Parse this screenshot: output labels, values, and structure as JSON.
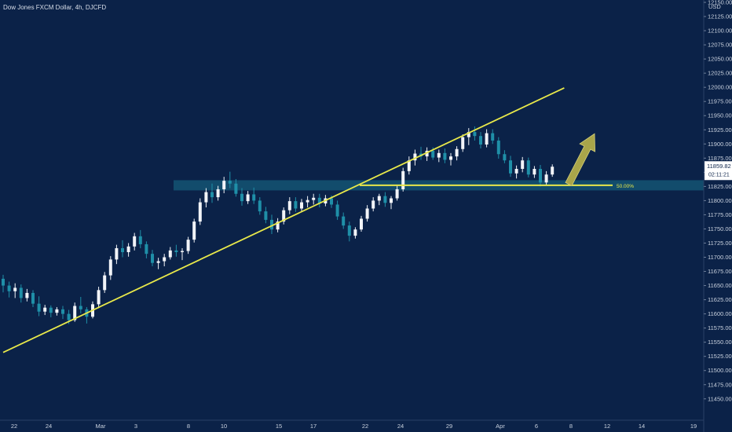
{
  "header": {
    "title": "Dow Jones FXCM Dollar, 4h, DJCFD"
  },
  "colors": {
    "background": "#0b2248",
    "bullish": "#f2f4f8",
    "bearish": "#1f8fa8",
    "trendline": "#e8e84a",
    "zone": "#1a6f8a",
    "arrow": "#a9a54a",
    "axis_text": "#c9d1de"
  },
  "chart_data": {
    "type": "candlestick",
    "title": "Dow Jones FXCM Dollar, 4h, DJCFD",
    "currency_label": "USD",
    "y_axis": {
      "ylim": [
        11440,
        12150
      ],
      "ticks": [
        12150,
        12125,
        12100,
        12075,
        12050,
        12025,
        12000,
        11975,
        11950,
        11925,
        11900,
        11875,
        11850,
        11825,
        11800,
        11775,
        11750,
        11725,
        11700,
        11675,
        11650,
        11625,
        11600,
        11575,
        11550,
        11525,
        11500,
        11475,
        11450
      ],
      "tick_labels": [
        "12150.00",
        "12125.00",
        "12100.00",
        "12075.00",
        "12050.00",
        "12025.00",
        "12000.00",
        "11975.00",
        "11950.00",
        "11925.00",
        "11900.00",
        "11875.00",
        "11850.00",
        "11825.00",
        "11800.00",
        "11775.00",
        "11750.00",
        "11725.00",
        "11700.00",
        "11675.00",
        "11650.00",
        "11625.00",
        "11600.00",
        "11575.00",
        "11550.00",
        "11525.00",
        "11500.00",
        "11475.00",
        "11450.00"
      ]
    },
    "x_axis": {
      "tick_labels": [
        "22",
        "24",
        "Mar",
        "3",
        "8",
        "10",
        "15",
        "17",
        "22",
        "24",
        "29",
        "Apr",
        "6",
        "8",
        "12",
        "14",
        "19"
      ]
    },
    "last_price": {
      "value": "11859.82",
      "countdown": "02:11:21"
    },
    "fib_label": "50.00%",
    "zone": {
      "high": 11836,
      "low": 11818
    },
    "fib_level": 11827,
    "trendline": {
      "start": [
        0,
        11532
      ],
      "end": [
        94,
        11999
      ]
    },
    "arrow": {
      "from_value": 11829,
      "to_value": 11918
    },
    "candles": [
      [
        11662,
        11669,
        11638,
        11650
      ],
      [
        11650,
        11657,
        11629,
        11640
      ],
      [
        11640,
        11654,
        11628,
        11646
      ],
      [
        11646,
        11652,
        11620,
        11628
      ],
      [
        11628,
        11644,
        11622,
        11637
      ],
      [
        11637,
        11642,
        11612,
        11618
      ],
      [
        11618,
        11631,
        11596,
        11604
      ],
      [
        11604,
        11616,
        11598,
        11611
      ],
      [
        11611,
        11615,
        11594,
        11602
      ],
      [
        11602,
        11612,
        11597,
        11608
      ],
      [
        11608,
        11614,
        11591,
        11600
      ],
      [
        11600,
        11607,
        11582,
        11589
      ],
      [
        11589,
        11620,
        11586,
        11614
      ],
      [
        11614,
        11630,
        11601,
        11608
      ],
      [
        11608,
        11612,
        11583,
        11595
      ],
      [
        11595,
        11622,
        11592,
        11617
      ],
      [
        11617,
        11648,
        11610,
        11642
      ],
      [
        11642,
        11674,
        11637,
        11668
      ],
      [
        11668,
        11702,
        11660,
        11696
      ],
      [
        11696,
        11722,
        11688,
        11716
      ],
      [
        11716,
        11730,
        11700,
        11709
      ],
      [
        11709,
        11725,
        11701,
        11719
      ],
      [
        11719,
        11743,
        11712,
        11737
      ],
      [
        11737,
        11748,
        11716,
        11723
      ],
      [
        11723,
        11728,
        11698,
        11706
      ],
      [
        11706,
        11713,
        11684,
        11690
      ],
      [
        11690,
        11699,
        11679,
        11693
      ],
      [
        11693,
        11706,
        11684,
        11700
      ],
      [
        11700,
        11718,
        11696,
        11712
      ],
      [
        11712,
        11722,
        11701,
        11709
      ],
      [
        11709,
        11716,
        11695,
        11711
      ],
      [
        11711,
        11736,
        11706,
        11731
      ],
      [
        11731,
        11768,
        11726,
        11763
      ],
      [
        11763,
        11804,
        11757,
        11797
      ],
      [
        11797,
        11822,
        11788,
        11815
      ],
      [
        11815,
        11830,
        11796,
        11806
      ],
      [
        11806,
        11826,
        11800,
        11820
      ],
      [
        11820,
        11842,
        11813,
        11835
      ],
      [
        11835,
        11851,
        11822,
        11830
      ],
      [
        11830,
        11838,
        11807,
        11812
      ],
      [
        11812,
        11822,
        11791,
        11799
      ],
      [
        11799,
        11817,
        11794,
        11811
      ],
      [
        11811,
        11823,
        11794,
        11800
      ],
      [
        11800,
        11806,
        11775,
        11781
      ],
      [
        11781,
        11789,
        11760,
        11766
      ],
      [
        11766,
        11775,
        11741,
        11749
      ],
      [
        11749,
        11769,
        11744,
        11763
      ],
      [
        11763,
        11788,
        11758,
        11783
      ],
      [
        11783,
        11806,
        11776,
        11799
      ],
      [
        11799,
        11806,
        11780,
        11786
      ],
      [
        11786,
        11803,
        11780,
        11797
      ],
      [
        11797,
        11808,
        11788,
        11801
      ],
      [
        11801,
        11812,
        11793,
        11805
      ],
      [
        11805,
        11812,
        11788,
        11795
      ],
      [
        11795,
        11810,
        11790,
        11804
      ],
      [
        11804,
        11809,
        11787,
        11793
      ],
      [
        11793,
        11800,
        11766,
        11772
      ],
      [
        11772,
        11779,
        11750,
        11756
      ],
      [
        11756,
        11763,
        11728,
        11738
      ],
      [
        11738,
        11753,
        11733,
        11749
      ],
      [
        11749,
        11773,
        11745,
        11768
      ],
      [
        11768,
        11792,
        11763,
        11786
      ],
      [
        11786,
        11806,
        11781,
        11800
      ],
      [
        11800,
        11812,
        11792,
        11808
      ],
      [
        11808,
        11815,
        11789,
        11796
      ],
      [
        11796,
        11808,
        11785,
        11804
      ],
      [
        11804,
        11826,
        11800,
        11820
      ],
      [
        11820,
        11858,
        11816,
        11852
      ],
      [
        11852,
        11878,
        11846,
        11871
      ],
      [
        11871,
        11890,
        11862,
        11883
      ],
      [
        11883,
        11895,
        11872,
        11878
      ],
      [
        11878,
        11894,
        11870,
        11888
      ],
      [
        11888,
        11894,
        11872,
        11876
      ],
      [
        11876,
        11890,
        11868,
        11884
      ],
      [
        11884,
        11892,
        11866,
        11872
      ],
      [
        11872,
        11884,
        11862,
        11878
      ],
      [
        11878,
        11896,
        11871,
        11891
      ],
      [
        11891,
        11917,
        11886,
        11912
      ],
      [
        11912,
        11928,
        11898,
        11921
      ],
      [
        11921,
        11931,
        11906,
        11914
      ],
      [
        11914,
        11921,
        11892,
        11899
      ],
      [
        11899,
        11926,
        11894,
        11919
      ],
      [
        11919,
        11926,
        11900,
        11906
      ],
      [
        11906,
        11912,
        11874,
        11882
      ],
      [
        11882,
        11889,
        11866,
        11871
      ],
      [
        11871,
        11879,
        11842,
        11848
      ],
      [
        11848,
        11862,
        11839,
        11856
      ],
      [
        11856,
        11877,
        11850,
        11871
      ],
      [
        11871,
        11876,
        11841,
        11846
      ],
      [
        11846,
        11861,
        11840,
        11856
      ],
      [
        11856,
        11863,
        11825,
        11832
      ],
      [
        11832,
        11852,
        11827,
        11846
      ],
      [
        11846,
        11864,
        11842,
        11859.82
      ]
    ]
  }
}
